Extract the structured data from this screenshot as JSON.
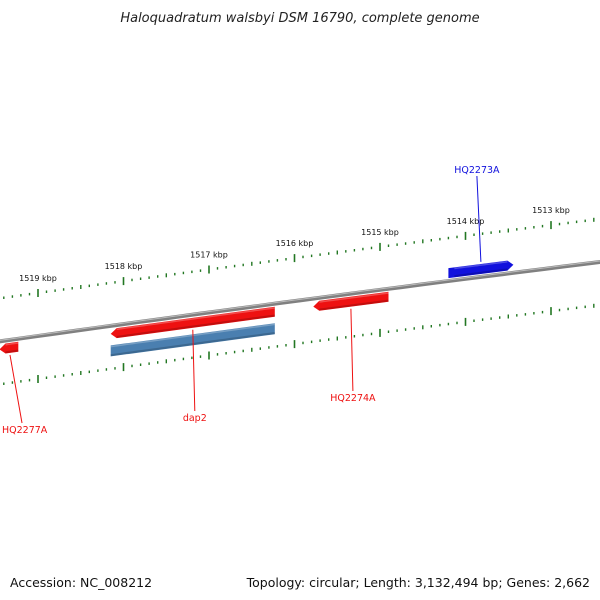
{
  "title": "Haloquadratum walsbyi DSM 16790, complete genome",
  "footer": {
    "accession_text": "Accession: NC_008212",
    "summary_text": "Topology: circular; Length: 3,132,494 bp; Genes: 2,662"
  },
  "colors": {
    "backbone": "#808080",
    "tick": "#227722",
    "forward_gene": "#1111dd",
    "reverse_gene": "#ee1111",
    "rna_gene": "#4a7fb0"
  },
  "ticks": [
    {
      "kbp": 1513,
      "label": "1513 kbp"
    },
    {
      "kbp": 1514,
      "label": "1514 kbp"
    },
    {
      "kbp": 1515,
      "label": "1515 kbp"
    },
    {
      "kbp": 1516,
      "label": "1516 kbp"
    },
    {
      "kbp": 1517,
      "label": "1517 kbp"
    },
    {
      "kbp": 1518,
      "label": "1518 kbp"
    },
    {
      "kbp": 1519,
      "label": "1519 kbp"
    }
  ],
  "genes": [
    {
      "name": "HQ2273A",
      "strand": "forward",
      "kind": "cds",
      "start_kbp": 1513.44,
      "end_kbp": 1514.2,
      "labeled": true
    },
    {
      "name": "HQ2274A",
      "strand": "reverse",
      "kind": "cds",
      "start_kbp": 1514.9,
      "end_kbp": 1515.78,
      "labeled": true
    },
    {
      "name": "dap2",
      "strand": "reverse",
      "kind": "cds",
      "start_kbp": 1516.23,
      "end_kbp": 1518.15,
      "labeled": true
    },
    {
      "name": "dap2",
      "strand": "reverse",
      "kind": "rna",
      "start_kbp": 1516.23,
      "end_kbp": 1518.15,
      "labeled": false
    },
    {
      "name": "HQ2277A",
      "strand": "reverse",
      "kind": "cds",
      "start_kbp": 1519.23,
      "end_kbp": 1519.45,
      "labeled": true
    }
  ]
}
